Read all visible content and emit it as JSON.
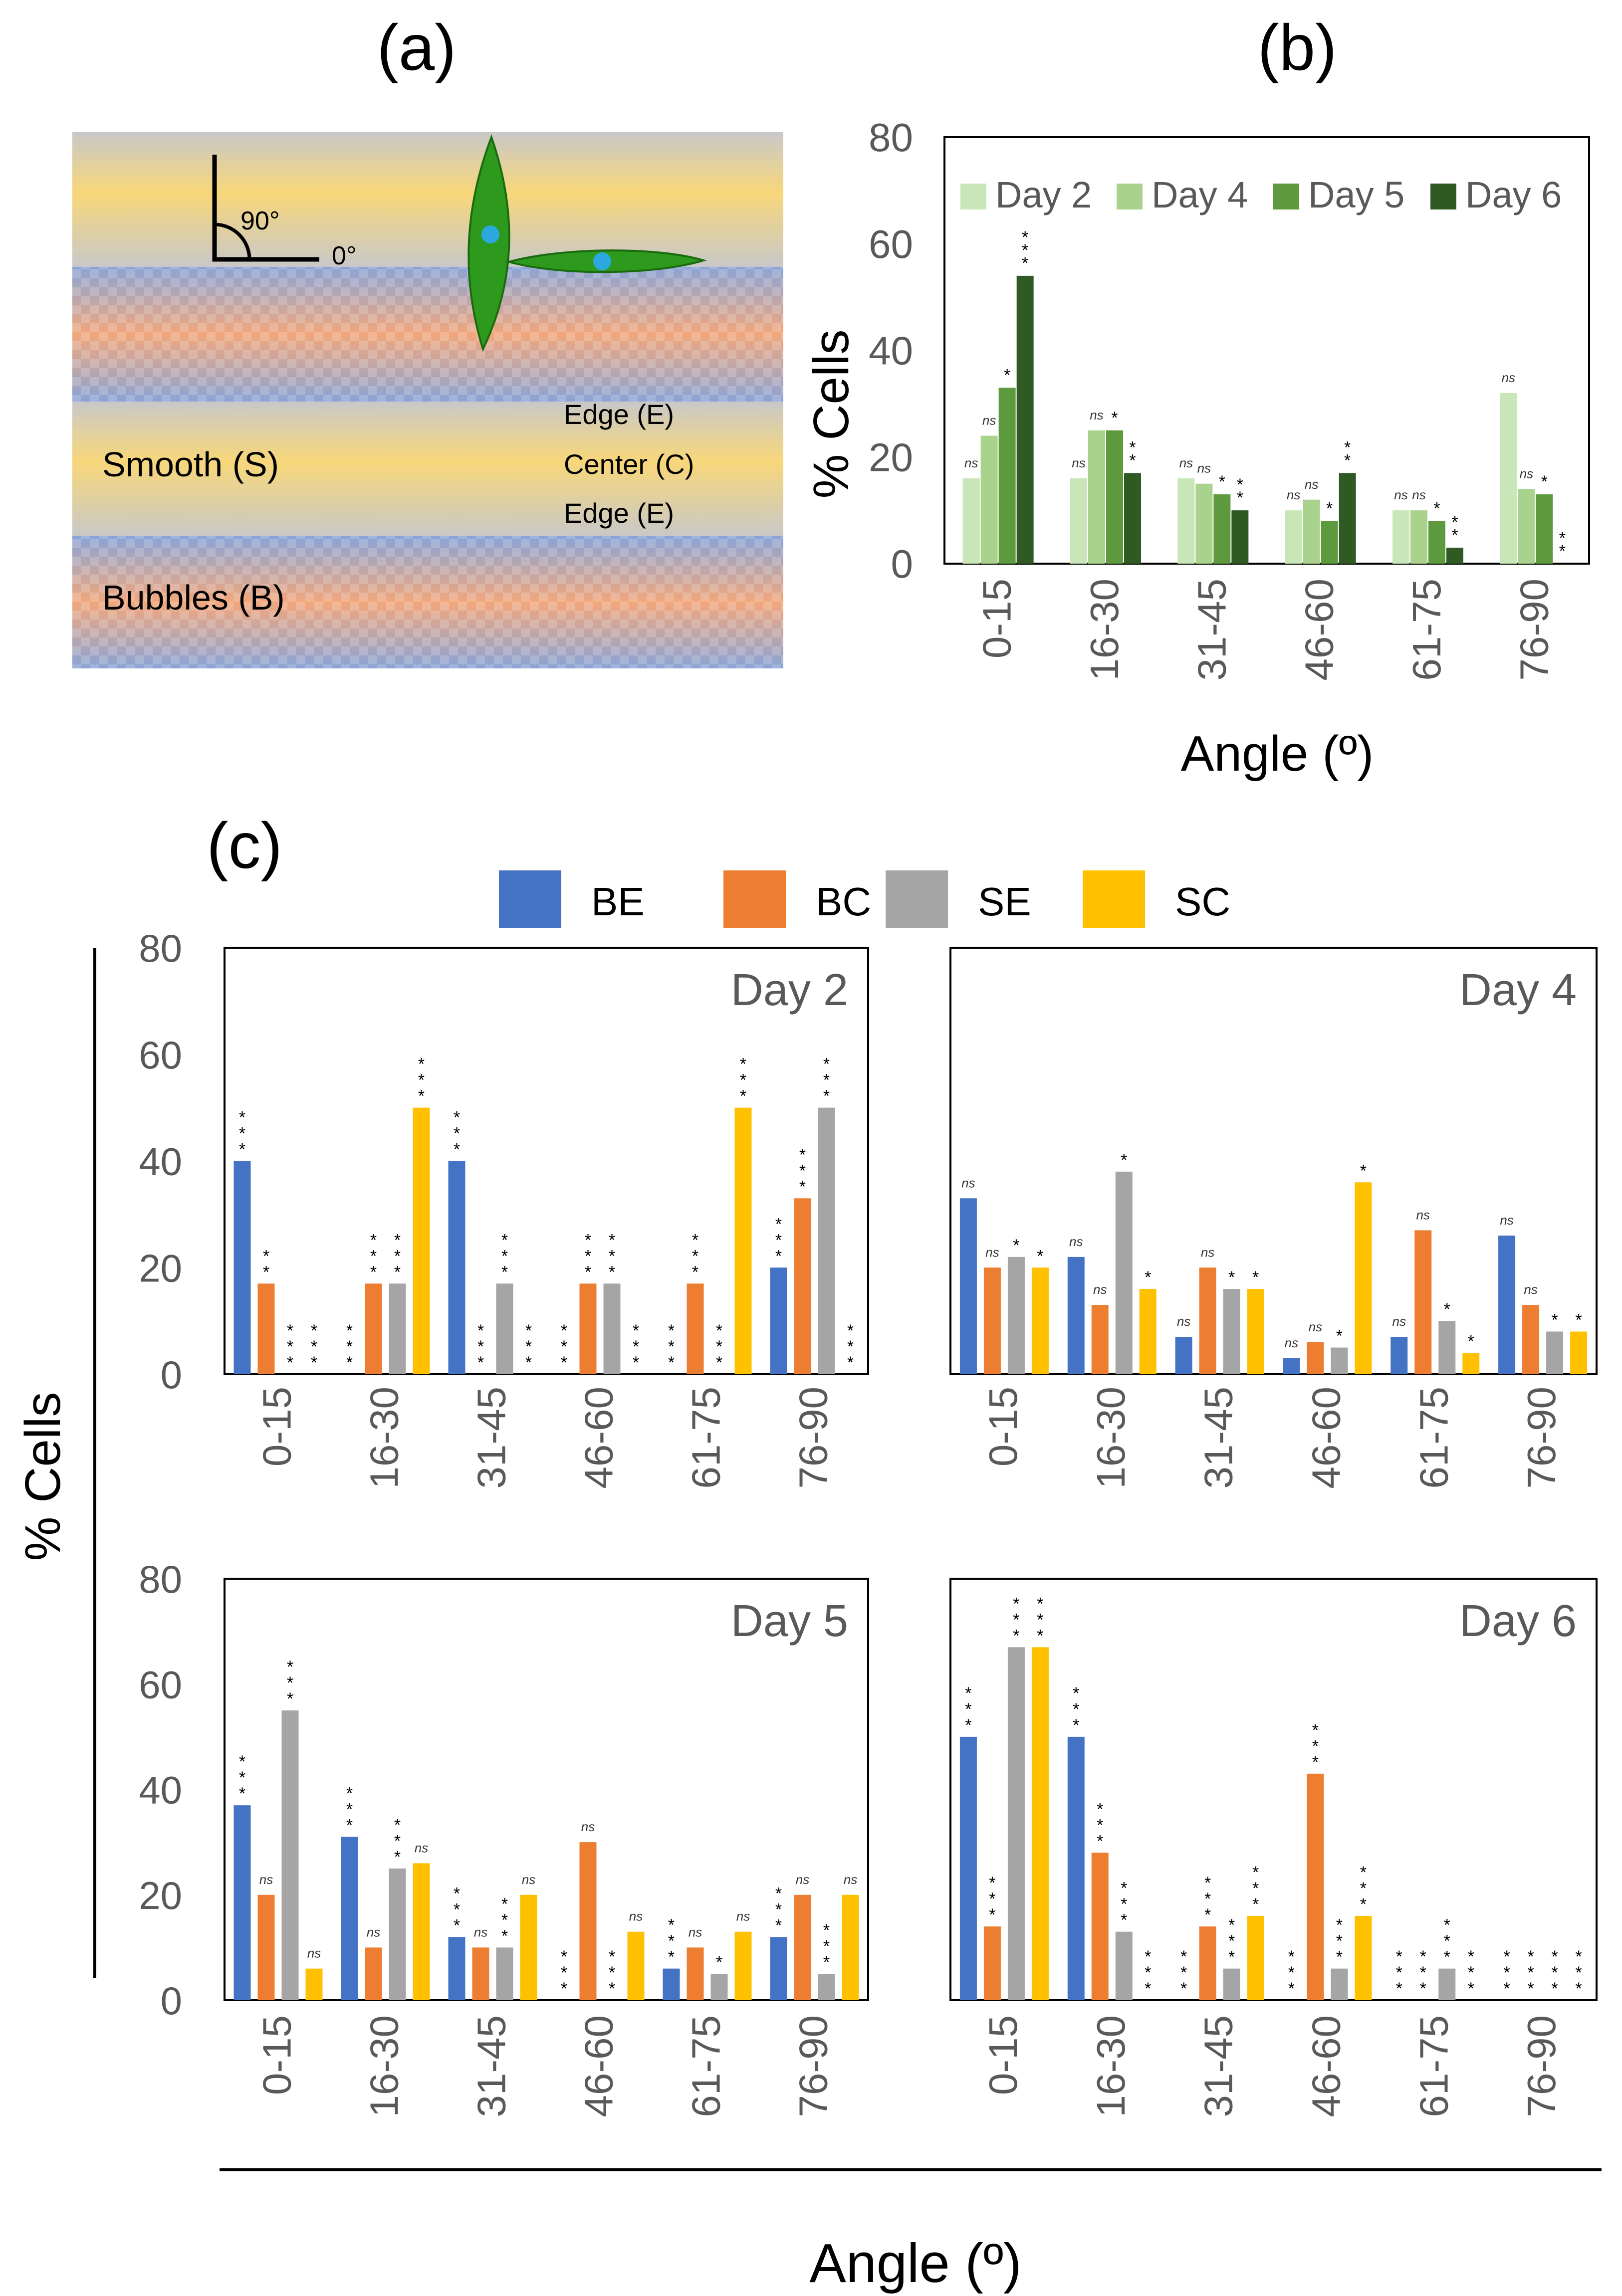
{
  "panel_labels": {
    "a": "(a)",
    "b": "(b)",
    "c": "(c)"
  },
  "colors": {
    "day2": "#c9e6b8",
    "day4": "#a9d38c",
    "day5": "#5c9a3d",
    "day6": "#2f5a24",
    "BE": "#4472c4",
    "BC": "#ed7d31",
    "SE": "#a5a5a5",
    "SC": "#ffc000",
    "axis_text": "#595959",
    "stripe_yellow": "#f8d77a",
    "stripe_gray": "#c8c8c8",
    "stripe_blue": "#8aa4d6",
    "stripe_orange": "#f1a77c",
    "cell": "#2e9a1d",
    "nucleus": "#2ba8e0"
  },
  "diagram": {
    "angle_90": "90°",
    "angle_0": "0°",
    "edge_top": "Edge (E)",
    "center": "Center (C)",
    "edge_bottom": "Edge (E)",
    "smooth": "Smooth (S)",
    "bubbles": "Bubbles (B)",
    "icons": [
      "right-angle-icon",
      "vertical-cell-icon",
      "horizontal-cell-icon"
    ]
  },
  "chart_data": [
    {
      "id": "b",
      "type": "bar",
      "categories": [
        "0-15",
        "16-30",
        "31-45",
        "46-60",
        "61-75",
        "76-90"
      ],
      "series": [
        {
          "name": "Day 2",
          "values": [
            16,
            16,
            16,
            10,
            10,
            32
          ]
        },
        {
          "name": "Day 4",
          "values": [
            24,
            25,
            15,
            12,
            10,
            14
          ]
        },
        {
          "name": "Day 5",
          "values": [
            33,
            25,
            13,
            8,
            8,
            13
          ]
        },
        {
          "name": "Day 6",
          "values": [
            54,
            17,
            10,
            17,
            3,
            0
          ]
        }
      ],
      "annotations": [
        [
          "ns",
          "ns",
          "ns",
          "ns",
          "ns",
          "ns"
        ],
        [
          "ns",
          "ns",
          "ns",
          "ns",
          "ns",
          "ns"
        ],
        [
          "*",
          "*",
          "*",
          "*",
          "*",
          "*"
        ],
        [
          "***",
          "**",
          "**",
          "**",
          "**",
          "**"
        ]
      ],
      "xlabel": "Angle (º)",
      "ylabel": "% Cells",
      "yticks": [
        "0",
        "20",
        "40",
        "60",
        "80"
      ],
      "ylim": [
        0,
        80
      ]
    },
    {
      "id": "c",
      "type": "bar",
      "legend": [
        "BE",
        "BC",
        "SE",
        "SC"
      ],
      "categories": [
        "0-15",
        "16-30",
        "31-45",
        "46-60",
        "61-75",
        "76-90"
      ],
      "yticks": [
        "0",
        "20",
        "40",
        "60",
        "80"
      ],
      "ylim": [
        0,
        80
      ],
      "ylabel": "% Cells",
      "xlabel": "Angle (º)",
      "panels": [
        {
          "title": "Day 2",
          "series": [
            {
              "name": "BE",
              "values": [
                40,
                0,
                40,
                0,
                0,
                20
              ]
            },
            {
              "name": "BC",
              "values": [
                17,
                17,
                0,
                17,
                17,
                33
              ]
            },
            {
              "name": "SE",
              "values": [
                0,
                17,
                17,
                17,
                0,
                50
              ]
            },
            {
              "name": "SC",
              "values": [
                0,
                50,
                0,
                0,
                50,
                0
              ]
            }
          ],
          "annotations": [
            [
              "***",
              "***",
              "***",
              "***",
              "***",
              "***"
            ],
            [
              "**",
              "***",
              "***",
              "***",
              "***",
              "***"
            ],
            [
              "***",
              "***",
              "***",
              "***",
              "***",
              "***"
            ],
            [
              "***",
              "***",
              "***",
              "***",
              "***",
              "***"
            ]
          ]
        },
        {
          "title": "Day 4",
          "series": [
            {
              "name": "BE",
              "values": [
                33,
                22,
                7,
                3,
                7,
                26
              ]
            },
            {
              "name": "BC",
              "values": [
                20,
                13,
                20,
                6,
                27,
                13
              ]
            },
            {
              "name": "SE",
              "values": [
                22,
                38,
                16,
                5,
                10,
                8
              ]
            },
            {
              "name": "SC",
              "values": [
                20,
                16,
                16,
                36,
                4,
                8
              ]
            }
          ],
          "annotations": [
            [
              "ns",
              "ns",
              "ns",
              "ns",
              "ns",
              "ns"
            ],
            [
              "ns",
              "ns",
              "ns",
              "ns",
              "ns",
              "ns"
            ],
            [
              "*",
              "*",
              "*",
              "*",
              "*",
              "*"
            ],
            [
              "*",
              "*",
              "*",
              "*",
              "*",
              "*"
            ]
          ]
        },
        {
          "title": "Day 5",
          "series": [
            {
              "name": "BE",
              "values": [
                37,
                31,
                12,
                0,
                6,
                12
              ]
            },
            {
              "name": "BC",
              "values": [
                20,
                10,
                10,
                30,
                10,
                20
              ]
            },
            {
              "name": "SE",
              "values": [
                55,
                25,
                10,
                0,
                5,
                5
              ]
            },
            {
              "name": "SC",
              "values": [
                6,
                26,
                20,
                13,
                13,
                20
              ]
            }
          ],
          "annotations": [
            [
              "***",
              "***",
              "***",
              "***",
              "***",
              "***"
            ],
            [
              "ns",
              "ns",
              "ns",
              "ns",
              "ns",
              "ns"
            ],
            [
              "***",
              "***",
              "***",
              "***",
              "*",
              "***"
            ],
            [
              "ns",
              "ns",
              "ns",
              "ns",
              "ns",
              "ns"
            ]
          ]
        },
        {
          "title": "Day 6",
          "series": [
            {
              "name": "BE",
              "values": [
                50,
                50,
                0,
                0,
                0,
                0
              ]
            },
            {
              "name": "BC",
              "values": [
                14,
                28,
                14,
                43,
                0,
                0
              ]
            },
            {
              "name": "SE",
              "values": [
                67,
                13,
                6,
                6,
                6,
                0
              ]
            },
            {
              "name": "SC",
              "values": [
                67,
                0,
                16,
                16,
                0,
                0
              ]
            }
          ],
          "annotations": [
            [
              "***",
              "***",
              "***",
              "***",
              "***",
              "***"
            ],
            [
              "***",
              "***",
              "***",
              "***",
              "***",
              "***"
            ],
            [
              "***",
              "***",
              "***",
              "***",
              "***",
              "***"
            ],
            [
              "***",
              "***",
              "***",
              "***",
              "***",
              "***"
            ]
          ]
        }
      ]
    }
  ]
}
